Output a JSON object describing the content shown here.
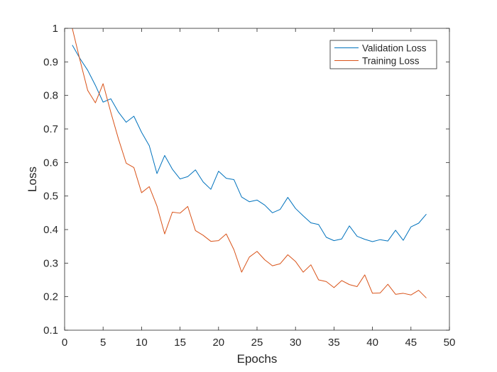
{
  "chart_data": {
    "type": "line",
    "title": "",
    "xlabel": "Epochs",
    "ylabel": "Loss",
    "xlim": [
      0,
      50
    ],
    "ylim": [
      0.1,
      1
    ],
    "xticks": [
      0,
      5,
      10,
      15,
      20,
      25,
      30,
      35,
      40,
      45,
      50
    ],
    "yticks": [
      0.1,
      0.2,
      0.3,
      0.4,
      0.5,
      0.6,
      0.7,
      0.8,
      0.9,
      1
    ],
    "grid": false,
    "legend_position": "top-right",
    "x": [
      1,
      2,
      3,
      4,
      5,
      6,
      7,
      8,
      9,
      10,
      11,
      12,
      13,
      14,
      15,
      16,
      17,
      18,
      19,
      20,
      21,
      22,
      23,
      24,
      25,
      26,
      27,
      28,
      29,
      30,
      31,
      32,
      33,
      34,
      35,
      36,
      37,
      38,
      39,
      40,
      41,
      42,
      43,
      44,
      45,
      46,
      47
    ],
    "series": [
      {
        "name": "Validation Loss",
        "color": "#0072BD",
        "values": [
          0.95,
          0.91,
          0.875,
          0.83,
          0.78,
          0.79,
          0.75,
          0.72,
          0.738,
          0.69,
          0.65,
          0.567,
          0.621,
          0.58,
          0.551,
          0.558,
          0.578,
          0.542,
          0.52,
          0.574,
          0.553,
          0.549,
          0.497,
          0.483,
          0.488,
          0.473,
          0.45,
          0.46,
          0.496,
          0.463,
          0.441,
          0.42,
          0.415,
          0.377,
          0.367,
          0.372,
          0.411,
          0.38,
          0.371,
          0.364,
          0.37,
          0.366,
          0.398,
          0.368,
          0.408,
          0.419,
          0.446
        ]
      },
      {
        "name": "Training Loss",
        "color": "#D95319",
        "values": [
          1.0,
          0.905,
          0.815,
          0.778,
          0.835,
          0.75,
          0.67,
          0.598,
          0.585,
          0.51,
          0.528,
          0.47,
          0.387,
          0.452,
          0.449,
          0.469,
          0.397,
          0.383,
          0.365,
          0.367,
          0.387,
          0.34,
          0.273,
          0.318,
          0.335,
          0.31,
          0.292,
          0.298,
          0.325,
          0.305,
          0.273,
          0.295,
          0.25,
          0.245,
          0.227,
          0.248,
          0.236,
          0.23,
          0.265,
          0.21,
          0.211,
          0.237,
          0.207,
          0.21,
          0.205,
          0.219,
          0.196
        ]
      }
    ]
  }
}
